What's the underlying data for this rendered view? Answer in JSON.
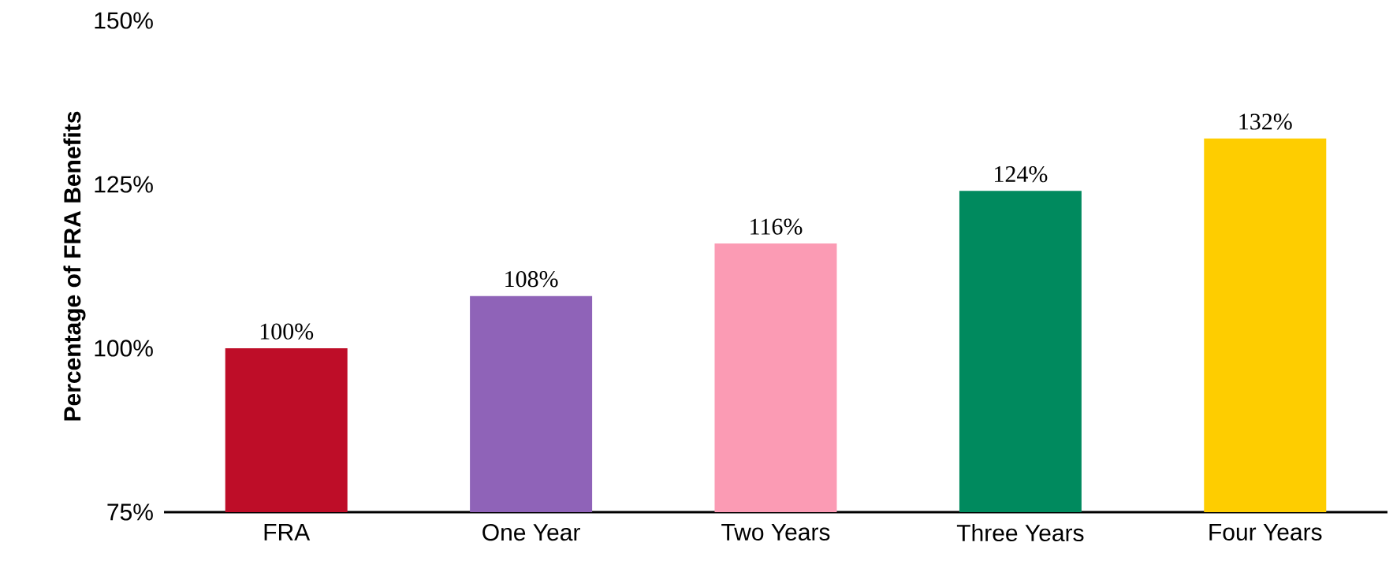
{
  "chart_data": {
    "type": "bar",
    "ylabel": "Percentage of FRA Benefits",
    "categories": [
      "FRA",
      "One Year",
      "Two Years",
      "Three Years",
      "Four Years"
    ],
    "values": [
      100,
      108,
      116,
      124,
      132
    ],
    "value_labels": [
      "100%",
      "108%",
      "116%",
      "124%",
      "132%"
    ],
    "colors": [
      "#be0d28",
      "#8f63b8",
      "#fb9bb4",
      "#008a5e",
      "#fecd00"
    ],
    "ylim": [
      75,
      150
    ],
    "yticks": [
      {
        "value": 75,
        "label": "75%"
      },
      {
        "value": 100,
        "label": "100%"
      },
      {
        "value": 125,
        "label": "125%"
      },
      {
        "value": 150,
        "label": "150%"
      }
    ]
  }
}
